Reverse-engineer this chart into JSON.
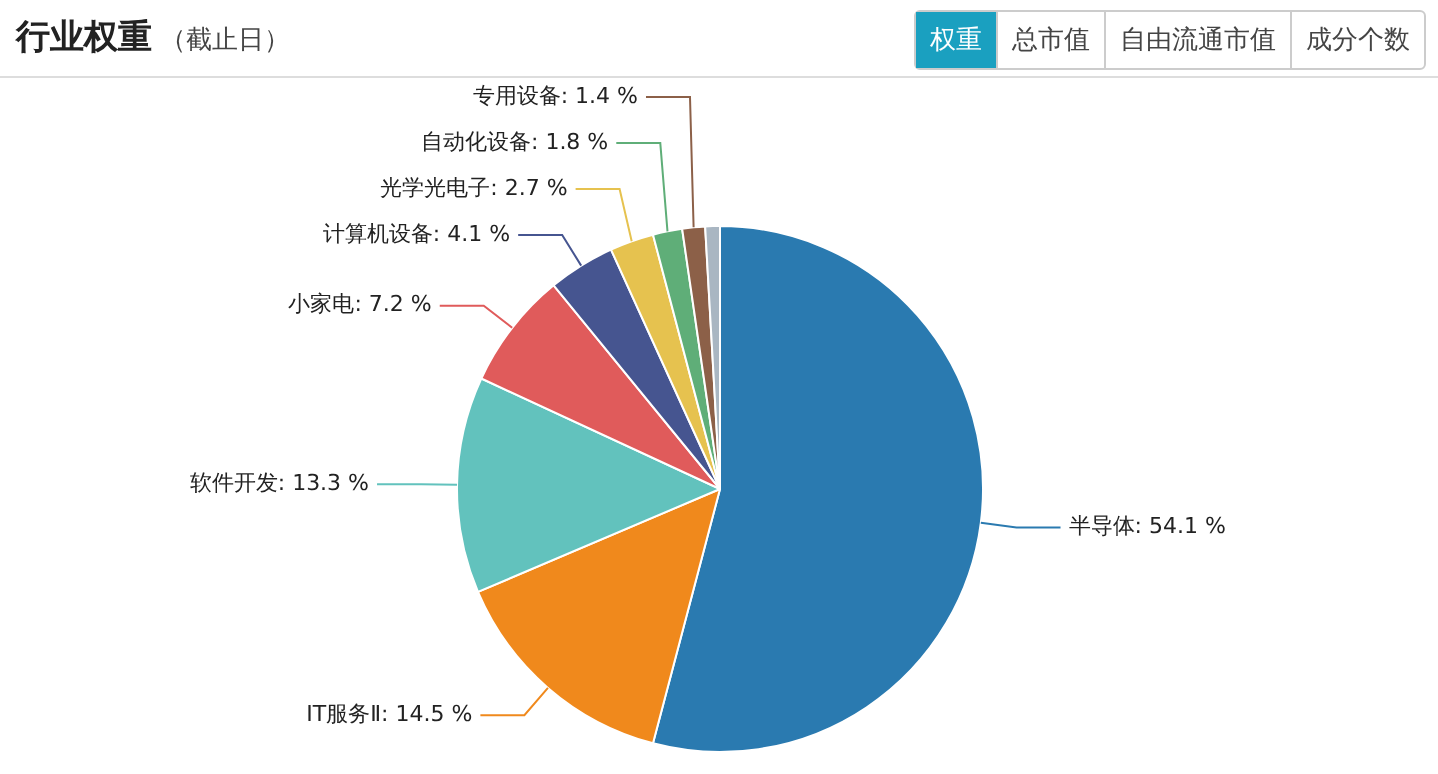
{
  "chart_data": {
    "type": "pie",
    "title": "行业权重",
    "subtitle": "（截止日）",
    "categories": [
      "半导体",
      "IT服务Ⅱ",
      "软件开发",
      "小家电",
      "计算机设备",
      "光学光电子",
      "自动化设备",
      "专用设备",
      null
    ],
    "values": [
      54.1,
      14.5,
      13.3,
      7.2,
      4.1,
      2.7,
      1.8,
      1.4,
      0.9
    ],
    "value_labels": [
      "54.1 %",
      "14.5 %",
      "13.3 %",
      "7.2 %",
      "4.1 %",
      "2.7 %",
      "1.8 %",
      "1.4 %",
      null
    ],
    "colors": [
      "#2a7ab0",
      "#f0891c",
      "#62c2bd",
      "#e05b5b",
      "#465590",
      "#e6c24f",
      "#5fae78",
      "#8c6048",
      "#a9b6c2"
    ],
    "annotations": [
      "权重",
      "总市值",
      "自由流通市值",
      "成分个数"
    ],
    "legend": false
  }
}
